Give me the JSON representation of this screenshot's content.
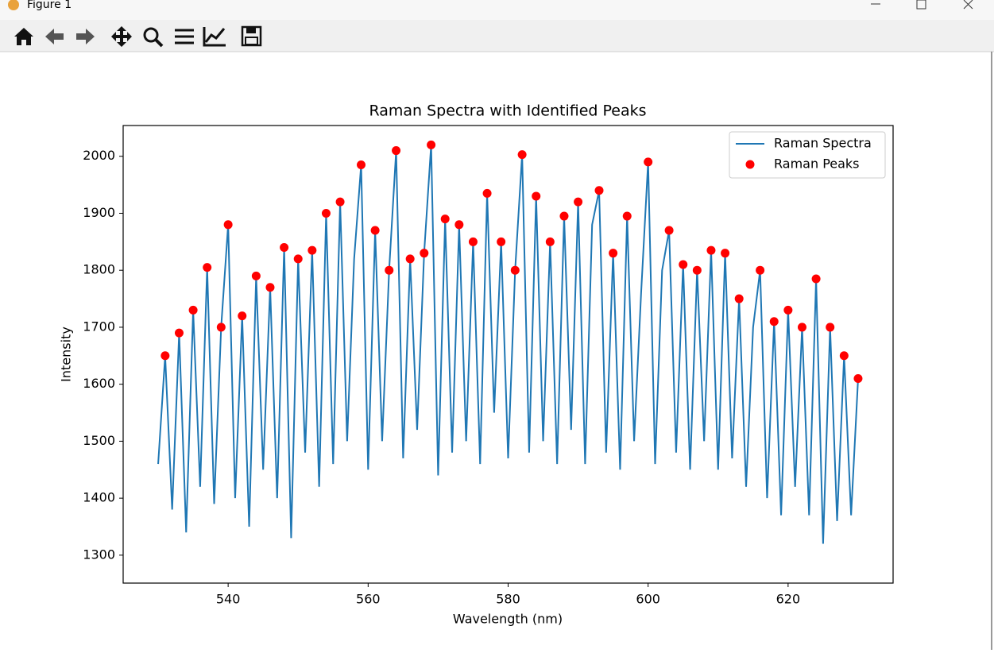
{
  "window": {
    "title": "Figure 1"
  },
  "chart_data": {
    "type": "line",
    "title": "Raman Spectra with Identified Peaks",
    "x_label": "Wavelength (nm)",
    "y_label": "Intensity",
    "xlim": [
      525,
      635
    ],
    "ylim": [
      1251,
      2054
    ],
    "xticks": [
      540,
      560,
      580,
      600,
      620
    ],
    "yticks": [
      1300,
      1400,
      1500,
      1600,
      1700,
      1800,
      1900,
      2000
    ],
    "legend": "upper right",
    "series": [
      {
        "name": "Raman Spectra",
        "type": "line",
        "color": "#1f77b4",
        "x": [
          530,
          531,
          532,
          533,
          534,
          535,
          536,
          537,
          538,
          539,
          540,
          541,
          542,
          543,
          544,
          545,
          546,
          547,
          548,
          549,
          550,
          551,
          552,
          553,
          554,
          555,
          556,
          557,
          558,
          559,
          560,
          561,
          562,
          563,
          564,
          565,
          566,
          567,
          568,
          569,
          570,
          571,
          572,
          573,
          574,
          575,
          576,
          577,
          578,
          579,
          580,
          581,
          582,
          583,
          584,
          585,
          586,
          587,
          588,
          589,
          590,
          591,
          592,
          593,
          594,
          595,
          596,
          597,
          598,
          599,
          600,
          601,
          602,
          603,
          604,
          605,
          606,
          607,
          608,
          609,
          610,
          611,
          612,
          613,
          614,
          615,
          616,
          617,
          618,
          619,
          620,
          621,
          622,
          623,
          624,
          625,
          626,
          627,
          628,
          629,
          630
        ],
        "values": [
          1460,
          1650,
          1380,
          1690,
          1340,
          1730,
          1420,
          1805,
          1390,
          1700,
          1880,
          1400,
          1720,
          1350,
          1790,
          1450,
          1770,
          1400,
          1840,
          1330,
          1820,
          1480,
          1835,
          1420,
          1900,
          1460,
          1920,
          1500,
          1820,
          1985,
          1450,
          1870,
          1500,
          1800,
          2010,
          1470,
          1820,
          1520,
          1830,
          2020,
          1440,
          1890,
          1480,
          1880,
          1500,
          1850,
          1460,
          1935,
          1550,
          1850,
          1470,
          1800,
          2003,
          1480,
          1930,
          1500,
          1850,
          1460,
          1895,
          1520,
          1920,
          1460,
          1880,
          1940,
          1480,
          1830,
          1450,
          1895,
          1500,
          1760,
          1990,
          1460,
          1800,
          1870,
          1480,
          1810,
          1450,
          1800,
          1500,
          1835,
          1450,
          1830,
          1470,
          1750,
          1420,
          1700,
          1800,
          1400,
          1710,
          1370,
          1730,
          1420,
          1700,
          1370,
          1785,
          1320,
          1700,
          1360,
          1650,
          1370,
          1610
        ]
      },
      {
        "name": "Raman Peaks",
        "type": "scatter",
        "color": "#ff0000",
        "x": [
          531,
          533,
          535,
          537,
          539,
          540,
          542,
          544,
          546,
          548,
          550,
          552,
          554,
          556,
          559,
          561,
          563,
          564,
          566,
          568,
          569,
          571,
          573,
          575,
          577,
          579,
          581,
          582,
          584,
          586,
          588,
          590,
          593,
          595,
          597,
          600,
          603,
          605,
          607,
          609,
          611,
          613,
          616,
          618,
          620,
          622,
          624,
          626,
          628,
          630
        ],
        "values": [
          1650,
          1690,
          1730,
          1805,
          1700,
          1880,
          1720,
          1790,
          1770,
          1840,
          1820,
          1835,
          1900,
          1920,
          1985,
          1870,
          1800,
          2010,
          1820,
          1830,
          2020,
          1890,
          1880,
          1850,
          1935,
          1850,
          1800,
          2003,
          1930,
          1850,
          1895,
          1920,
          1940,
          1830,
          1895,
          1990,
          1870,
          1810,
          1800,
          1835,
          1830,
          1750,
          1800,
          1710,
          1730,
          1700,
          1785,
          1700,
          1650,
          1610
        ]
      }
    ]
  }
}
